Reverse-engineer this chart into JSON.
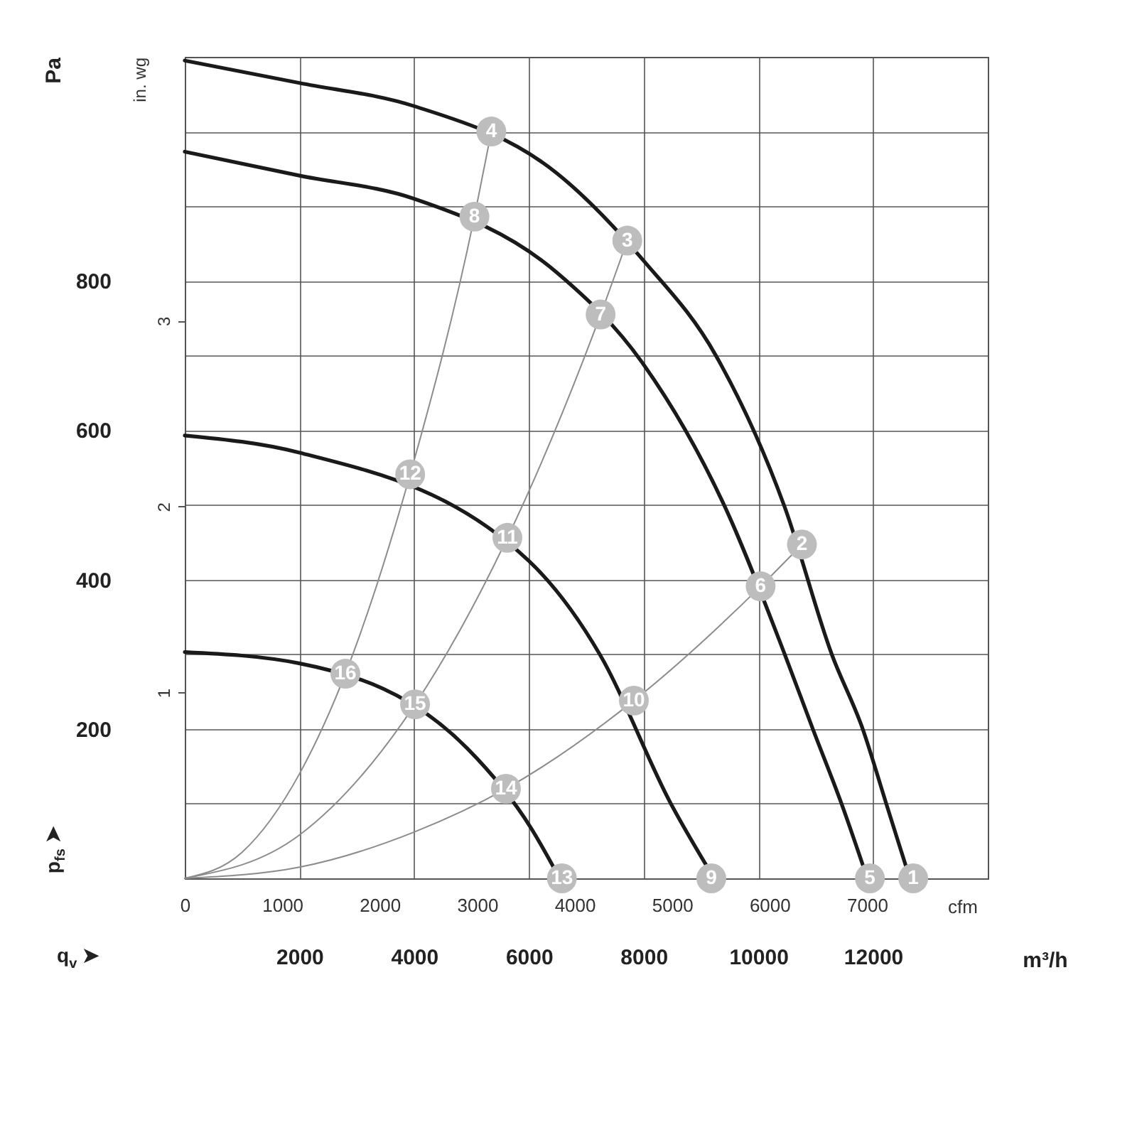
{
  "chart_data": {
    "type": "line",
    "xlabel": "m³/h",
    "x2label": "cfm",
    "ylabel": "Pa",
    "y2label": "in. wg",
    "annotations": [
      "q$_{v}$ ➤",
      "p$_{fs}$ ➤",
      {
        "text": "1",
        "x": 12700,
        "y": 0
      },
      {
        "text": "2",
        "x": 10760,
        "y": 447
      },
      {
        "text": "3",
        "x": 7715,
        "y": 854
      },
      {
        "text": "4",
        "x": 5345,
        "y": 1000
      },
      {
        "text": "5",
        "x": 11945,
        "y": 0
      },
      {
        "text": "6",
        "x": 10040,
        "y": 391
      },
      {
        "text": "7",
        "x": 7250,
        "y": 755
      },
      {
        "text": "8",
        "x": 5050,
        "y": 886
      },
      {
        "text": "9",
        "x": 9180,
        "y": 0
      },
      {
        "text": "10",
        "x": 7830,
        "y": 238
      },
      {
        "text": "11",
        "x": 5625,
        "y": 456
      },
      {
        "text": "12",
        "x": 3930,
        "y": 541
      },
      {
        "text": "13",
        "x": 6575,
        "y": 0
      },
      {
        "text": "14",
        "x": 5600,
        "y": 120
      },
      {
        "text": "15",
        "x": 4015,
        "y": 233
      },
      {
        "text": "16",
        "x": 2800,
        "y": 274
      }
    ],
    "xlim": [
      0,
      14000
    ],
    "xticks": [
      2000,
      4000,
      6000,
      8000,
      10000,
      12000
    ],
    "x2lim": [
      0,
      8240
    ],
    "x2ticks": [
      0,
      1000,
      2000,
      3000,
      4000,
      5000,
      6000,
      7000
    ],
    "ylim": [
      0,
      1100
    ],
    "yticks": [
      {
        "value": 100,
        "label": null
      },
      200,
      {
        "value": 300,
        "label": null
      },
      400,
      {
        "value": 500,
        "label": null
      },
      600,
      {
        "value": 700,
        "label": null
      },
      800,
      {
        "value": 900,
        "label": null
      },
      {
        "value": 1000,
        "label": null
      }
    ],
    "y2lim": [
      0,
      4.42
    ],
    "y2ticks": [
      1,
      2,
      3
    ],
    "grid": true,
    "marker": "none",
    "line_style": "solid",
    "series": [
      {
        "color": "#1a1a1a",
        "x": [
          0,
          2000,
          4000,
          6490,
          8000,
          9260,
          10460,
          11280,
          11820,
          12230,
          12640
        ],
        "values": [
          1095,
          1065,
          1034,
          944,
          827,
          700,
          497,
          300,
          200,
          100,
          0
        ]
      },
      {
        "color": "#1a1a1a",
        "x": [
          0,
          2000,
          4000,
          6490,
          8000,
          9420,
          10460,
          10950,
          11450,
          11900
        ],
        "values": [
          973,
          941,
          910,
          811,
          688,
          497,
          300,
          200,
          100,
          0
        ]
      },
      {
        "color": "#1a1a1a",
        "x": [
          0,
          2000,
          6000,
          7235,
          8475,
          9230
        ],
        "values": [
          593,
          570,
          425,
          300,
          100,
          0
        ]
      },
      {
        "color": "#1a1a1a",
        "x": [
          0,
          1990,
          4925,
          6040,
          6535
        ],
        "values": [
          303,
          288,
          174,
          67,
          0
        ]
      },
      {
        "color": "#8c8c8c",
        "x": [
          0,
          1000,
          2000,
          2800,
          3930,
          5050,
          5345
        ],
        "values": [
          0,
          35,
          140,
          274,
          541,
          886,
          1000
        ]
      },
      {
        "color": "#8c8c8c",
        "x": [
          0,
          2000,
          4015,
          5625,
          7250,
          7715
        ],
        "values": [
          0,
          58,
          233,
          456,
          755,
          854
        ]
      },
      {
        "color": "#8c8c8c",
        "x": [
          0,
          2000,
          4000,
          5600,
          7830,
          10040,
          10760
        ],
        "values": [
          0,
          15,
          62,
          120,
          238,
          391,
          447
        ]
      },
      {
        "type": "scatter",
        "color": "#bdbdbd",
        "marker": "circle",
        "x": [
          12700,
          10760,
          7715,
          5345,
          11945,
          10040,
          7250,
          5050,
          9180,
          7830,
          5625,
          3930,
          6575,
          5600,
          4015,
          2800
        ],
        "values": [
          0,
          447,
          854,
          1000,
          0,
          391,
          755,
          886,
          0,
          238,
          456,
          541,
          0,
          120,
          233,
          274
        ]
      }
    ]
  }
}
